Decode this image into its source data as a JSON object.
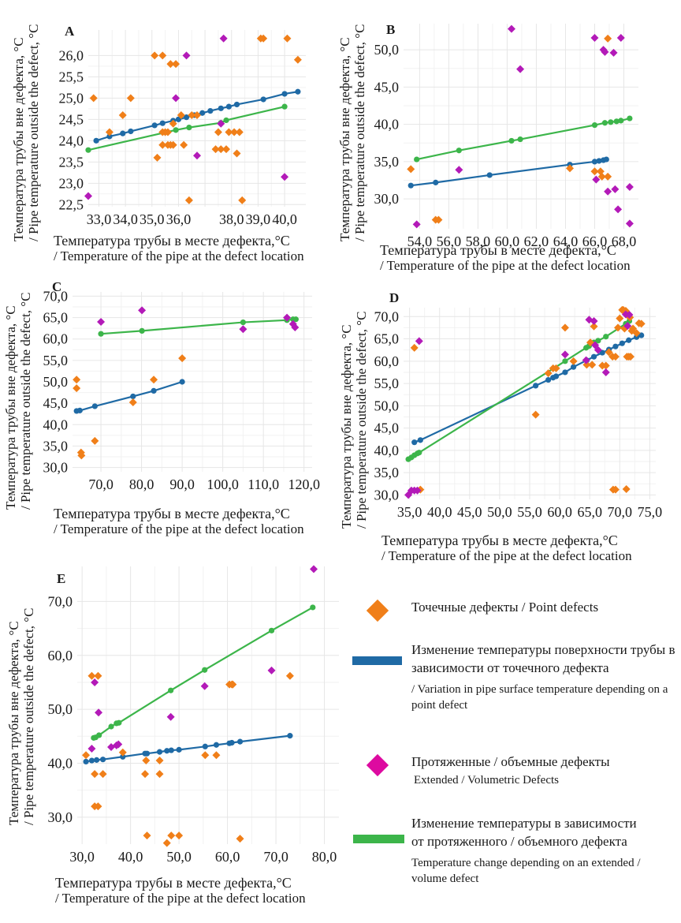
{
  "colors": {
    "point": "#f07f19",
    "extended": "#b31ab8",
    "extended_legend": "#dd0aa0",
    "point_line": "#1f6aa5",
    "extended_line": "#3cb54a",
    "grid": "#e6e6e6"
  },
  "axis_text": {
    "ylabel_ru": "Температура трубы вне дефекта, °C",
    "ylabel_en": "/ Pipe temperature outside the defect, °C",
    "xlabel_ru": "Температура трубы в месте дефекта,°C",
    "xlabel_en": "/ Temperature of the pipe at the defect location"
  },
  "legend": [
    {
      "marker": "diamond",
      "color_key": "point",
      "ru": "Точечные дефекты / Point defects",
      "en": ""
    },
    {
      "marker": "line",
      "color_key": "point_line",
      "ru": "Изменение температуры поверхности трубы в зависимости от точечного дефекта",
      "en": "/ Variation in pipe surface temperature depending on a point defect"
    },
    {
      "marker": "diamond",
      "color_key": "extended_legend",
      "ru": "Протяженные / объемные дефекты",
      "en": "Extended / Volumetric Defects"
    },
    {
      "marker": "line",
      "color_key": "extended_line",
      "ru": "Изменение температуры в зависимости от протяженного / объемного дефекта",
      "en": "Temperature change depending on an extended / volume defect"
    }
  ],
  "chart_data": [
    {
      "id": "A",
      "type": "scatter",
      "xlabel": "Температура трубы в месте дефекта,°C / Temperature of the pipe at the defect location",
      "ylabel": "Температура трубы вне дефекта, °C / Pipe temperature outside the defect, °C",
      "xlim": [
        32.6,
        40.8
      ],
      "ylim": [
        22.45,
        26.6
      ],
      "xticks": [
        33,
        34,
        35,
        36,
        37,
        38,
        39,
        40
      ],
      "xtick_labels": [
        "33,0",
        "34,0",
        "35,0",
        "36,0",
        "",
        "38,0",
        "39,0",
        "40,0"
      ],
      "yticks": [
        22.5,
        23.0,
        23.5,
        24.0,
        24.5,
        25.0,
        25.5,
        26.0
      ],
      "ytick_labels": [
        "22,5",
        "23,0",
        "23,5",
        "24,0",
        "24,5",
        "25,0",
        "25,5",
        "26,0"
      ],
      "series": [
        {
          "name": "Point defects",
          "kind": "points",
          "color_key": "point",
          "x": [
            32.8,
            33.9,
            34.2,
            33.4,
            35.1,
            35.4,
            35.7,
            35.9,
            39.1,
            39.2,
            40.1,
            40.5,
            35.2,
            35.8,
            36.1,
            36.5,
            36.7,
            35.5,
            35.4,
            35.6,
            37.5,
            37.9,
            38.1,
            38.3,
            35.4,
            35.6,
            35.8,
            35.7,
            36.2,
            37.4,
            37.8,
            38.2,
            37.6,
            36.4,
            38.4
          ],
          "y": [
            25.0,
            24.6,
            25.0,
            24.2,
            26.0,
            26.0,
            25.8,
            25.8,
            26.4,
            26.4,
            26.4,
            25.9,
            23.6,
            24.4,
            24.6,
            24.6,
            24.6,
            24.2,
            24.2,
            24.2,
            24.2,
            24.2,
            24.2,
            24.2,
            23.9,
            23.9,
            23.9,
            23.9,
            23.9,
            23.8,
            23.8,
            23.7,
            23.8,
            22.6,
            22.6
          ]
        },
        {
          "name": "Extended / Volumetric defects",
          "kind": "points",
          "color_key": "extended",
          "x": [
            32.6,
            35.9,
            36.3,
            37.7,
            36.7,
            37.6,
            40.0
          ],
          "y": [
            22.7,
            25.0,
            26.0,
            26.4,
            23.65,
            24.4,
            23.15
          ]
        },
        {
          "name": "Point defect trend",
          "kind": "line",
          "color_key": "point_line",
          "x": [
            32.9,
            33.4,
            33.9,
            34.2,
            35.1,
            35.4,
            35.8,
            36.0,
            36.3,
            36.6,
            36.9,
            37.2,
            37.6,
            37.9,
            38.2,
            39.2,
            40.0,
            40.5
          ],
          "y": [
            24.0,
            24.1,
            24.17,
            24.22,
            24.36,
            24.41,
            24.47,
            24.5,
            24.55,
            24.6,
            24.65,
            24.7,
            24.76,
            24.8,
            24.85,
            24.97,
            25.1,
            25.15
          ]
        },
        {
          "name": "Extended defect trend",
          "kind": "line",
          "color_key": "extended_line",
          "x": [
            32.6,
            35.9,
            36.4,
            37.6,
            37.8,
            40.0
          ],
          "y": [
            23.78,
            24.25,
            24.31,
            24.42,
            24.48,
            24.8
          ]
        }
      ]
    },
    {
      "id": "B",
      "type": "scatter",
      "xlabel": "Температура трубы в месте дефекта,°C / Temperature of the pipe at the defect location",
      "ylabel": "Температура трубы вне дефекта, °C / Pipe temperature outside the defect, °C",
      "xlim": [
        52.9,
        69.0
      ],
      "ylim": [
        26.0,
        53.5
      ],
      "xticks": [
        54,
        56,
        58,
        60,
        62,
        64,
        66,
        68
      ],
      "xtick_labels": [
        "54,0",
        "56,0",
        "58,0",
        "60,0",
        "62,0",
        "64,0",
        "66,0",
        "68,0"
      ],
      "yticks": [
        30,
        35,
        40,
        45,
        50
      ],
      "ytick_labels": [
        "30,0",
        "35,0",
        "40,0",
        "45,0",
        "50,0"
      ],
      "series": [
        {
          "name": "Point defects",
          "kind": "points",
          "color_key": "point",
          "x": [
            53.4,
            55.1,
            55.3,
            64.3,
            66.0,
            66.4,
            66.5,
            66.9,
            66.9
          ],
          "y": [
            34.0,
            27.2,
            27.2,
            34.1,
            33.7,
            33.7,
            33.0,
            33.0,
            51.5
          ]
        },
        {
          "name": "Extended / Volumetric defects",
          "kind": "points",
          "color_key": "extended",
          "x": [
            53.8,
            56.7,
            60.3,
            60.9,
            66.0,
            66.1,
            66.6,
            66.7,
            66.9,
            67.3,
            67.4,
            67.6,
            67.8,
            68.4,
            68.4
          ],
          "y": [
            26.6,
            33.9,
            52.8,
            47.4,
            51.6,
            32.6,
            50.0,
            49.7,
            31.0,
            49.6,
            31.3,
            28.6,
            51.6,
            31.6,
            26.7
          ]
        },
        {
          "name": "Point defect trend",
          "kind": "line",
          "color_key": "point_line",
          "x": [
            53.4,
            55.1,
            58.8,
            64.3,
            66.0,
            66.3,
            66.6,
            66.8
          ],
          "y": [
            31.8,
            32.2,
            33.2,
            34.6,
            35.0,
            35.1,
            35.2,
            35.3
          ]
        },
        {
          "name": "Extended defect trend",
          "kind": "line",
          "color_key": "extended_line",
          "x": [
            53.8,
            56.7,
            60.3,
            60.9,
            66.0,
            66.7,
            67.1,
            67.5,
            67.8,
            68.4
          ],
          "y": [
            35.3,
            36.5,
            37.8,
            38.0,
            39.9,
            40.2,
            40.3,
            40.4,
            40.5,
            40.8
          ]
        }
      ]
    },
    {
      "id": "C",
      "type": "scatter",
      "xlabel": "Температура трубы в месте дефекта,°C / Temperature of the pipe at the defect location",
      "ylabel": "Температура трубы вне дефекта, °C / Pipe temperature outside the defect, °C",
      "xlim": [
        63.0,
        122.0
      ],
      "ylim": [
        29.0,
        71.0
      ],
      "xticks": [
        70,
        80,
        90,
        100,
        110,
        120
      ],
      "xtick_labels": [
        "70,0",
        "80,0",
        "90,0",
        "100,0",
        "110,0",
        "120,0"
      ],
      "yticks": [
        30,
        35,
        40,
        45,
        50,
        55,
        60,
        65,
        70
      ],
      "ytick_labels": [
        "30,0",
        "35,0",
        "40,0",
        "45,0",
        "50,0",
        "55,0",
        "60,0",
        "65,0",
        "70,0"
      ],
      "series": [
        {
          "name": "Point defects",
          "kind": "points",
          "color_key": "point",
          "x": [
            64.0,
            64.0,
            65.1,
            65.2,
            68.5,
            77.9,
            83.0,
            90.0
          ],
          "y": [
            50.5,
            48.5,
            33.5,
            32.8,
            36.2,
            45.2,
            50.5,
            55.5
          ]
        },
        {
          "name": "Extended / Volumetric defects",
          "kind": "points",
          "color_key": "extended",
          "x": [
            70.0,
            80.1,
            105.0,
            115.8,
            117.3,
            117.8
          ],
          "y": [
            64.0,
            66.7,
            62.3,
            65.0,
            63.5,
            62.7
          ]
        },
        {
          "name": "Point defect trend",
          "kind": "line",
          "color_key": "point_line",
          "x": [
            64.0,
            64.8,
            68.5,
            77.9,
            83.0,
            90.0
          ],
          "y": [
            43.2,
            43.3,
            44.3,
            46.6,
            47.9,
            50.0
          ]
        },
        {
          "name": "Extended defect trend",
          "kind": "line",
          "color_key": "extended_line",
          "x": [
            70.0,
            80.1,
            105.0,
            115.8,
            117.3,
            118.0
          ],
          "y": [
            61.2,
            61.9,
            63.9,
            64.4,
            64.6,
            64.6
          ]
        }
      ]
    },
    {
      "id": "D",
      "type": "scatter",
      "xlabel": "Температура трубы в месте дефекта,°C / Temperature of the pipe at the defect location",
      "ylabel": "Температура трубы вне дефекта, °C / Pipe temperature outside the defect, °C",
      "xlim": [
        34.0,
        76.0
      ],
      "ylim": [
        29.0,
        72.0
      ],
      "xticks": [
        35,
        40,
        45,
        50,
        55,
        60,
        65,
        70,
        75
      ],
      "xtick_labels": [
        "35,0",
        "40,0",
        "45,0",
        "50,0",
        "55,0",
        "60,0",
        "65,0",
        "70,0",
        "75,0"
      ],
      "yticks": [
        30,
        35,
        40,
        45,
        50,
        55,
        60,
        65,
        70
      ],
      "ytick_labels": [
        "30,0",
        "35,0",
        "40,0",
        "45,0",
        "50,0",
        "55,0",
        "60,0",
        "65,0",
        "70,0"
      ],
      "series": [
        {
          "name": "Point defects",
          "kind": "points",
          "color_key": "point",
          "x": [
            35.8,
            36.8,
            56.0,
            58.1,
            58.9,
            59.4,
            60.9,
            62.3,
            64.5,
            65.1,
            65.4,
            65.7,
            67.1,
            67.7,
            68.2,
            68.8,
            69.3,
            69.7,
            70.0,
            70.4,
            70.6,
            70.8,
            71.0,
            71.2,
            71.5,
            71.8,
            72.2,
            72.8,
            73.2,
            73.6,
            68.9,
            69.3,
            71.1,
            71.7,
            72.0,
            71.2
          ],
          "y": [
            63.0,
            31.2,
            48.0,
            57.3,
            58.4,
            58.4,
            67.5,
            60.0,
            59.2,
            64.2,
            59.2,
            67.8,
            59.0,
            59.0,
            62.0,
            61.0,
            61.0,
            67.5,
            69.6,
            71.5,
            71.5,
            67.3,
            71.3,
            61.0,
            61.0,
            61.0,
            67.3,
            66.3,
            68.5,
            68.4,
            31.2,
            31.2,
            31.3,
            69.8,
            66.8,
            70.4
          ]
        },
        {
          "name": "Extended / Volumetric defects",
          "kind": "points",
          "color_key": "extended",
          "x": [
            34.8,
            35.3,
            35.8,
            36.3,
            36.6,
            60.9,
            64.4,
            64.9,
            65.7,
            65.9,
            66.4,
            67.7,
            71.0,
            71.6,
            71.3
          ],
          "y": [
            30.0,
            31.0,
            31.0,
            31.0,
            64.5,
            61.5,
            60.2,
            69.3,
            69.0,
            63.6,
            62.5,
            57.5,
            70.5,
            70.4,
            67.9
          ]
        },
        {
          "name": "Point defect trend",
          "kind": "line",
          "color_key": "point_line",
          "x": [
            35.8,
            36.8,
            56.0,
            58.1,
            58.9,
            59.4,
            60.9,
            62.3,
            64.5,
            65.7,
            67.1,
            68.2,
            69.3,
            70.4,
            71.5,
            72.8,
            73.6
          ],
          "y": [
            41.8,
            42.3,
            54.5,
            55.8,
            56.3,
            56.6,
            57.5,
            58.7,
            60.2,
            61.0,
            61.9,
            62.6,
            63.3,
            64.0,
            64.7,
            65.4,
            65.8
          ]
        },
        {
          "name": "Extended defect trend",
          "kind": "line",
          "color_key": "extended_line",
          "x": [
            34.8,
            35.3,
            35.8,
            36.3,
            36.6,
            60.9,
            64.4,
            64.9,
            65.7,
            66.4,
            67.7,
            71.0,
            71.6
          ],
          "y": [
            38.0,
            38.4,
            38.9,
            39.3,
            39.5,
            60.0,
            63.0,
            63.4,
            64.2,
            64.6,
            65.5,
            68.4,
            69.0
          ]
        }
      ]
    },
    {
      "id": "E",
      "type": "scatter",
      "xlabel": "Температура трубы в месте дефекта,°C / Temperature of the pipe at the defect location",
      "ylabel": "Температура трубы вне дефекта, °C / Pipe temperature outside the defect, °C",
      "xlim": [
        29.0,
        83.0
      ],
      "ylim": [
        25.0,
        76.5
      ],
      "xticks": [
        30,
        40,
        50,
        60,
        70,
        80
      ],
      "xtick_labels": [
        "30,0",
        "40,0",
        "50,0",
        "60,0",
        "70,0",
        "80,0"
      ],
      "yticks": [
        30,
        40,
        50,
        60,
        70
      ],
      "ytick_labels": [
        "30,0",
        "40,0",
        "50,0",
        "60,0",
        "70,0"
      ],
      "series": [
        {
          "name": "Point defects",
          "kind": "points",
          "color_key": "point",
          "x": [
            30.8,
            32.0,
            33.3,
            32.6,
            34.3,
            38.4,
            32.6,
            33.3,
            43.0,
            43.2,
            46.0,
            46.0,
            55.4,
            57.7,
            60.4,
            60.9,
            61.1,
            72.9,
            43.4,
            47.5,
            48.4,
            50.0,
            62.6
          ],
          "y": [
            41.5,
            56.2,
            56.2,
            38.0,
            38.0,
            42.0,
            32.0,
            32.0,
            38.0,
            40.5,
            40.5,
            38.0,
            41.5,
            41.5,
            54.6,
            54.6,
            54.6,
            56.2,
            26.6,
            25.2,
            26.6,
            26.6,
            26.0
          ]
        },
        {
          "name": "Extended / Volumetric defects",
          "kind": "points",
          "color_key": "extended",
          "x": [
            32.0,
            32.6,
            33.4,
            36.0,
            37.1,
            37.5,
            48.3,
            55.3,
            69.1,
            77.8
          ],
          "y": [
            42.7,
            55.0,
            49.4,
            43.0,
            43.3,
            43.5,
            48.6,
            54.3,
            57.2,
            76.0
          ]
        },
        {
          "name": "Point defect trend",
          "kind": "line",
          "color_key": "point_line",
          "x": [
            30.8,
            32.0,
            33.0,
            34.3,
            38.4,
            43.0,
            43.4,
            46.0,
            47.5,
            48.4,
            50.0,
            55.4,
            57.7,
            60.4,
            60.9,
            62.6,
            72.9
          ],
          "y": [
            40.3,
            40.5,
            40.6,
            40.7,
            41.2,
            41.8,
            41.8,
            42.1,
            42.3,
            42.4,
            42.5,
            43.1,
            43.4,
            43.7,
            43.8,
            44.0,
            45.1
          ]
        },
        {
          "name": "Extended defect trend",
          "kind": "line",
          "color_key": "extended_line",
          "x": [
            32.4,
            32.8,
            33.5,
            36.0,
            37.1,
            37.6,
            48.3,
            55.3,
            69.1,
            77.6
          ],
          "y": [
            44.7,
            44.8,
            45.2,
            46.8,
            47.4,
            47.5,
            53.5,
            57.3,
            64.6,
            68.9
          ]
        }
      ]
    }
  ]
}
